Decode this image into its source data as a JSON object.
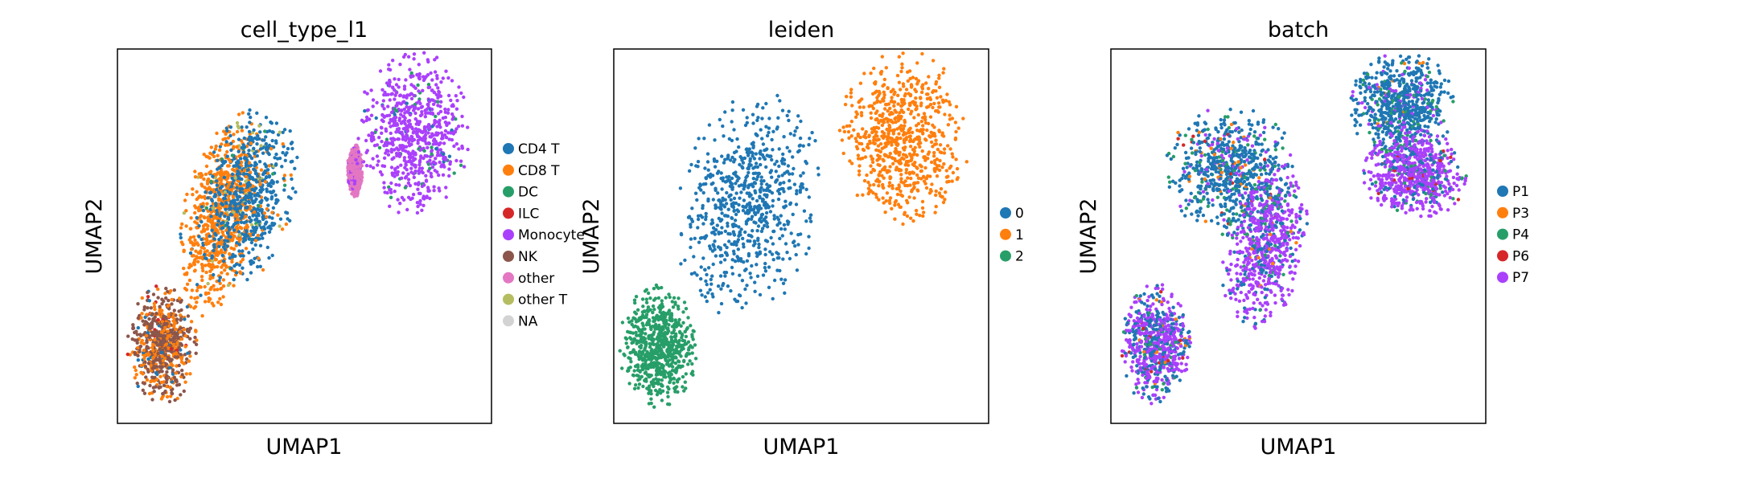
{
  "chart_data": [
    {
      "type": "scatter",
      "title": "cell_type_l1",
      "xlabel": "UMAP1",
      "ylabel": "UMAP2",
      "xticks": [],
      "yticks": [],
      "legend_position": "right",
      "categories": [
        {
          "name": "CD4 T",
          "color": "#1f77b4"
        },
        {
          "name": "CD8 T",
          "color": "#ff7f0e"
        },
        {
          "name": "DC",
          "color": "#279e68"
        },
        {
          "name": "ILC",
          "color": "#d62728"
        },
        {
          "name": "Monocyte",
          "color": "#aa40fc"
        },
        {
          "name": "NK",
          "color": "#8c564b"
        },
        {
          "name": "other",
          "color": "#e377c2"
        },
        {
          "name": "other T",
          "color": "#b5bd61"
        },
        {
          "name": "NA",
          "color": "#d3d3d3"
        }
      ],
      "clusters": [
        {
          "label": "CD8 T",
          "cx": -0.45,
          "cy": 0.12,
          "rx": 0.2,
          "ry": 0.56,
          "angle": -12,
          "mix": {
            "CD8 T": 0.93,
            "CD4 T": 0.05,
            "other T": 0.02
          }
        },
        {
          "label": "CD4 T",
          "cx": -0.3,
          "cy": 0.22,
          "rx": 0.25,
          "ry": 0.5,
          "angle": -12,
          "mix": {
            "CD4 T": 0.82,
            "CD8 T": 0.12,
            "other T": 0.04,
            "DC": 0.02
          }
        },
        {
          "label": "NK",
          "cx": -0.76,
          "cy": -0.58,
          "rx": 0.19,
          "ry": 0.32,
          "angle": 0,
          "mix": {
            "NK": 0.6,
            "CD8 T": 0.32,
            "CD4 T": 0.06,
            "ILC": 0.02
          }
        },
        {
          "label": "Monocyte",
          "cx": 0.58,
          "cy": 0.55,
          "rx": 0.3,
          "ry": 0.45,
          "angle": 0,
          "mix": {
            "Monocyte": 0.93,
            "DC": 0.05,
            "CD4 T": 0.02
          }
        },
        {
          "label": "other",
          "cx": 0.27,
          "cy": 0.35,
          "rx": 0.04,
          "ry": 0.14,
          "angle": 0,
          "mix": {
            "other": 0.85,
            "Monocyte": 0.15
          }
        }
      ]
    },
    {
      "type": "scatter",
      "title": "leiden",
      "xlabel": "UMAP1",
      "ylabel": "UMAP2",
      "xticks": [],
      "yticks": [],
      "legend_position": "right",
      "categories": [
        {
          "name": "0",
          "color": "#1f77b4"
        },
        {
          "name": "1",
          "color": "#ff7f0e"
        },
        {
          "name": "2",
          "color": "#279e68"
        }
      ],
      "clusters": [
        {
          "label": "0",
          "cx": -0.28,
          "cy": 0.17,
          "rx": 0.38,
          "ry": 0.62,
          "angle": -10,
          "mix": {
            "0": 1.0
          }
        },
        {
          "label": "1",
          "cx": 0.55,
          "cy": 0.53,
          "rx": 0.35,
          "ry": 0.47,
          "angle": 0,
          "mix": {
            "1": 1.0
          }
        },
        {
          "label": "2",
          "cx": -0.76,
          "cy": -0.59,
          "rx": 0.21,
          "ry": 0.33,
          "angle": 0,
          "mix": {
            "2": 1.0
          }
        }
      ]
    },
    {
      "type": "scatter",
      "title": "batch",
      "xlabel": "UMAP1",
      "ylabel": "UMAP2",
      "xticks": [],
      "yticks": [],
      "legend_position": "right",
      "categories": [
        {
          "name": "P1",
          "color": "#1f77b4"
        },
        {
          "name": "P3",
          "color": "#ff7f0e"
        },
        {
          "name": "P4",
          "color": "#279e68"
        },
        {
          "name": "P6",
          "color": "#d62728"
        },
        {
          "name": "P7",
          "color": "#aa40fc"
        }
      ],
      "clusters": [
        {
          "label": "mixed-upper",
          "cx": -0.36,
          "cy": 0.35,
          "rx": 0.35,
          "ry": 0.35,
          "angle": -10,
          "mix": {
            "P1": 0.72,
            "P7": 0.1,
            "P4": 0.1,
            "P3": 0.06,
            "P6": 0.02
          }
        },
        {
          "label": "mixed-lower",
          "cx": -0.18,
          "cy": -0.05,
          "rx": 0.22,
          "ry": 0.45,
          "angle": -10,
          "mix": {
            "P7": 0.7,
            "P1": 0.22,
            "P4": 0.05,
            "P3": 0.03
          }
        },
        {
          "label": "mono-top",
          "cx": 0.55,
          "cy": 0.7,
          "rx": 0.28,
          "ry": 0.3,
          "angle": 0,
          "mix": {
            "P1": 0.78,
            "P4": 0.1,
            "P7": 0.1,
            "P3": 0.02
          }
        },
        {
          "label": "mono-bottom",
          "cx": 0.62,
          "cy": 0.33,
          "rx": 0.28,
          "ry": 0.25,
          "angle": 0,
          "mix": {
            "P7": 0.78,
            "P1": 0.15,
            "P4": 0.05,
            "P6": 0.02
          }
        },
        {
          "label": "nk-cluster",
          "cx": -0.76,
          "cy": -0.58,
          "rx": 0.19,
          "ry": 0.33,
          "angle": 0,
          "mix": {
            "P7": 0.55,
            "P1": 0.35,
            "P4": 0.05,
            "P3": 0.03,
            "P6": 0.02
          }
        }
      ]
    }
  ]
}
